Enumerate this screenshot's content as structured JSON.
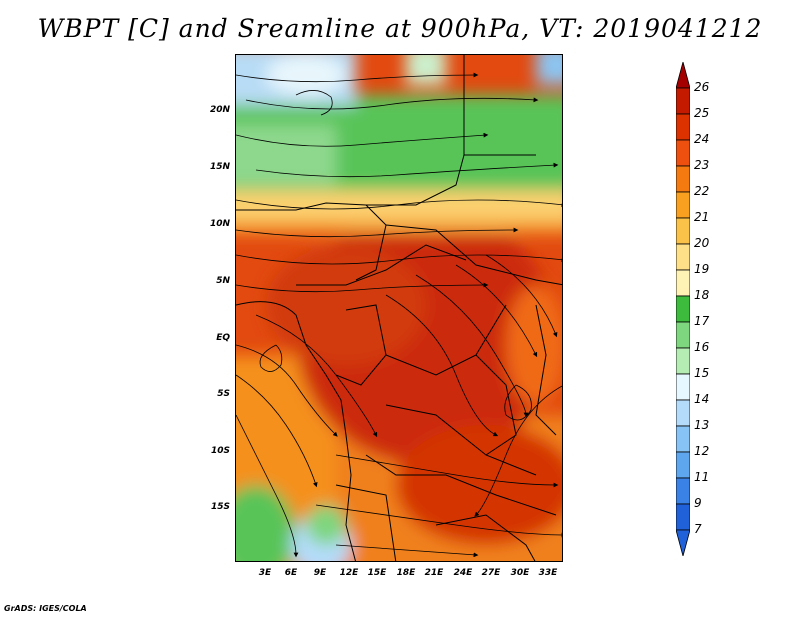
{
  "title": "WBPT [C] and Sreamline at 900hPa, VT: 2019041212",
  "credit": "GrADS: IGES/COLA",
  "lat_labels": [
    "20N",
    "15N",
    "10N",
    "5N",
    "EQ",
    "5S",
    "10S",
    "15S"
  ],
  "lon_labels": [
    "3E",
    "6E",
    "9E",
    "12E",
    "15E",
    "18E",
    "21E",
    "24E",
    "27E",
    "30E",
    "33E"
  ],
  "colorbar": {
    "levels": [
      "26",
      "25",
      "24",
      "23",
      "22",
      "21",
      "20",
      "19",
      "18",
      "17",
      "16",
      "15",
      "14",
      "13",
      "12",
      "11",
      "9",
      "7"
    ],
    "colors": [
      "#a50000",
      "#c41a00",
      "#dc3200",
      "#ee5010",
      "#f57a10",
      "#f9a020",
      "#fbc24a",
      "#fde088",
      "#fff2b4",
      "#3cbb3c",
      "#7ed67e",
      "#b4ecb4",
      "#e6f7ff",
      "#b4dcfa",
      "#87c3f5",
      "#5ea6ee",
      "#3b82e6",
      "#2060d8"
    ]
  }
}
